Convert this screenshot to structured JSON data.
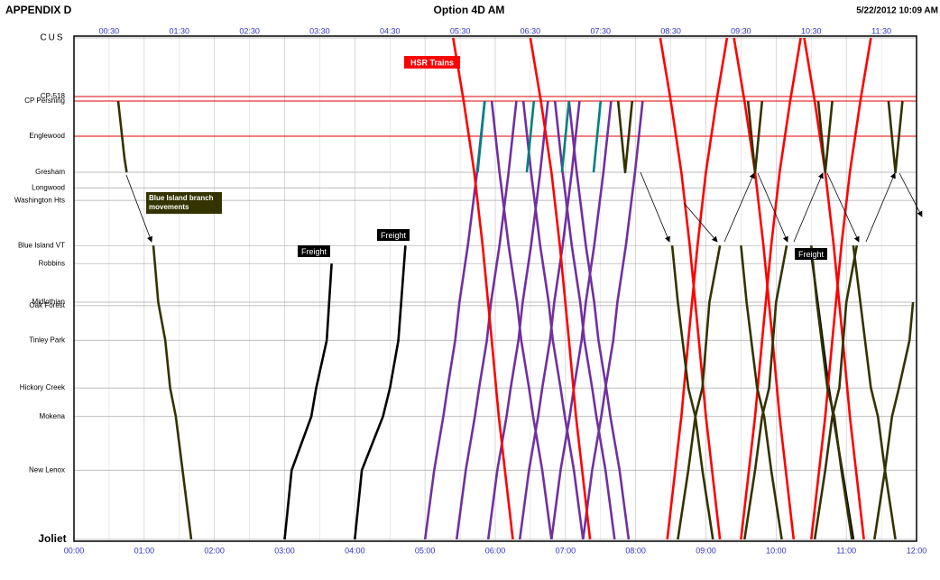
{
  "header": {
    "left": "APPENDIX D",
    "center": "Option 4D AM",
    "right": "5/22/2012 10:09 AM"
  },
  "chart_data": {
    "type": "line",
    "xlim": [
      0,
      12
    ],
    "xticks": [
      {
        "value": 0,
        "label": "00:00"
      },
      {
        "value": 1,
        "label": "01:00"
      },
      {
        "value": 2,
        "label": "02:00"
      },
      {
        "value": 3,
        "label": "03:00"
      },
      {
        "value": 4,
        "label": "04:00"
      },
      {
        "value": 5,
        "label": "05:00"
      },
      {
        "value": 6,
        "label": "06:00"
      },
      {
        "value": 7,
        "label": "07:00"
      },
      {
        "value": 8,
        "label": "08:00"
      },
      {
        "value": 9,
        "label": "09:00"
      },
      {
        "value": 10,
        "label": "10:00"
      },
      {
        "value": 11,
        "label": "11:00"
      },
      {
        "value": 12,
        "label": "12:00"
      }
    ],
    "x2ticks": [
      {
        "value": 0.5,
        "label": "00:30"
      },
      {
        "value": 1.5,
        "label": "01:30"
      },
      {
        "value": 2.5,
        "label": "02:30"
      },
      {
        "value": 3.5,
        "label": "03:30"
      },
      {
        "value": 4.5,
        "label": "04:30"
      },
      {
        "value": 5.5,
        "label": "05:30"
      },
      {
        "value": 6.5,
        "label": "06:30"
      },
      {
        "value": 7.5,
        "label": "07:30"
      },
      {
        "value": 8.5,
        "label": "08:30"
      },
      {
        "value": 9.5,
        "label": "09:30"
      },
      {
        "value": 10.5,
        "label": "10:30"
      },
      {
        "value": 11.5,
        "label": "11:30"
      }
    ],
    "ylim": [
      0,
      100
    ],
    "yticks": [
      {
        "value": 100,
        "label": "CUS"
      },
      {
        "value": 88.3,
        "label": "CP-518"
      },
      {
        "value": 87.4,
        "label": "CP Pershing"
      },
      {
        "value": 80.4,
        "label": "Englewood"
      },
      {
        "value": 73.2,
        "label": "Gresham"
      },
      {
        "value": 70.1,
        "label": "Longwood"
      },
      {
        "value": 67.6,
        "label": "Washington Hts"
      },
      {
        "value": 58.6,
        "label": "Blue Island VT"
      },
      {
        "value": 55,
        "label": "Robbins"
      },
      {
        "value": 47.3,
        "label": "Midlothian"
      },
      {
        "value": 46.6,
        "label": "Oak Forest"
      },
      {
        "value": 39.7,
        "label": "Tinley Park"
      },
      {
        "value": 30.2,
        "label": "Hickory Creek"
      },
      {
        "value": 24.5,
        "label": "Mokena"
      },
      {
        "value": 13.8,
        "label": "New Lenox"
      },
      {
        "value": 0,
        "label": "Joliet"
      }
    ],
    "highlight_color": "#e00000",
    "grid": true,
    "annotations": [
      {
        "text": "HSR Trains",
        "color": "#ff0000"
      },
      {
        "text": "Blue Island branch movements",
        "color": "#333300"
      },
      {
        "text": "Freight",
        "color": "#000000"
      },
      {
        "text": "Freight",
        "color": "#000000"
      },
      {
        "text": "Freight",
        "color": "#000000"
      }
    ],
    "series": [
      {
        "color": "#000000",
        "x": [
          3.0,
          3.1,
          3.38,
          3.45,
          3.6,
          3.67
        ],
        "values": [
          0,
          13.8,
          24.5,
          30.2,
          39.7,
          55
        ]
      },
      {
        "color": "#000000",
        "x": [
          4.0,
          4.1,
          4.4,
          4.5,
          4.62,
          4.72
        ],
        "values": [
          0,
          13.8,
          24.5,
          30.2,
          39.7,
          58.6
        ]
      },
      {
        "color": "#000000",
        "x": [
          10.5,
          10.75,
          11.1
        ],
        "values": [
          57,
          30.2,
          0
        ]
      },
      {
        "color": "#333300",
        "x": [
          0.63,
          0.72,
          0.75
        ],
        "values": [
          87.4,
          76,
          73.2
        ]
      },
      {
        "color": "#333300",
        "x": [
          1.13,
          1.2,
          1.3,
          1.37,
          1.45,
          1.67
        ],
        "values": [
          58.6,
          47.3,
          39.7,
          30.2,
          24.5,
          0
        ]
      },
      {
        "color": "#7030a0",
        "x": [
          5,
          5.13,
          5.26,
          5.32,
          5.43,
          5.49,
          5.61,
          5.74,
          5.85
        ],
        "values": [
          0,
          13.8,
          24.5,
          30.2,
          39.7,
          47.3,
          58.6,
          73.2,
          87.4
        ]
      },
      {
        "color": "#7030a0",
        "x": [
          5.45,
          5.58,
          5.71,
          5.77,
          5.88,
          5.94,
          6.06,
          6.19,
          6.3
        ],
        "values": [
          0,
          13.8,
          24.5,
          30.2,
          39.7,
          47.3,
          58.6,
          73.2,
          87.4
        ]
      },
      {
        "color": "#7030a0",
        "x": [
          5.9,
          6.03,
          6.16,
          6.22,
          6.33,
          6.39,
          6.51,
          6.64,
          6.75
        ],
        "values": [
          0,
          13.8,
          24.5,
          30.2,
          39.7,
          47.3,
          58.6,
          73.2,
          87.4
        ]
      },
      {
        "color": "#7030a0",
        "x": [
          6.35,
          6.48,
          6.61,
          6.67,
          6.78,
          6.84,
          6.96,
          7.09,
          7.2
        ],
        "values": [
          0,
          13.8,
          24.5,
          30.2,
          39.7,
          47.3,
          58.6,
          73.2,
          87.4
        ]
      },
      {
        "color": "#7030a0",
        "x": [
          6.8,
          6.93,
          7.06,
          7.12,
          7.23,
          7.29,
          7.41,
          7.54,
          7.65
        ],
        "values": [
          0,
          13.8,
          24.5,
          30.2,
          39.7,
          47.3,
          58.6,
          73.2,
          87.4
        ]
      },
      {
        "color": "#7030a0",
        "x": [
          7.25,
          7.38,
          7.51,
          7.57,
          7.68,
          7.74,
          7.86,
          7.99,
          8.1
        ],
        "values": [
          0,
          13.8,
          24.5,
          30.2,
          39.7,
          47.3,
          58.6,
          73.2,
          87.4
        ]
      },
      {
        "color": "#7030a0",
        "x": [
          5.95,
          6.06,
          6.19,
          6.31,
          6.37,
          6.48,
          6.54,
          6.67,
          6.8
        ],
        "values": [
          87.4,
          73.2,
          58.6,
          47.3,
          39.7,
          30.2,
          24.5,
          13.8,
          0
        ]
      },
      {
        "color": "#7030a0",
        "x": [
          6.4,
          6.51,
          6.64,
          6.76,
          6.82,
          6.93,
          6.99,
          7.12,
          7.25
        ],
        "values": [
          87.4,
          73.2,
          58.6,
          47.3,
          39.7,
          30.2,
          24.5,
          13.8,
          0
        ]
      },
      {
        "color": "#7030a0",
        "x": [
          6.85,
          6.96,
          7.09,
          7.21,
          7.27,
          7.38,
          7.44,
          7.57,
          7.7
        ],
        "values": [
          87.4,
          73.2,
          58.6,
          47.3,
          39.7,
          30.2,
          24.5,
          13.8,
          0
        ]
      },
      {
        "color": "#7030a0",
        "x": [
          7.05,
          7.16,
          7.29,
          7.41,
          7.47,
          7.58,
          7.64,
          7.77,
          7.9
        ],
        "values": [
          87.4,
          73.2,
          58.6,
          47.3,
          39.7,
          30.2,
          24.5,
          13.8,
          0
        ]
      },
      {
        "color": "#008080",
        "x": [
          5.75,
          5.85
        ],
        "values": [
          73.2,
          87.4
        ]
      },
      {
        "color": "#008080",
        "x": [
          6.45,
          6.55
        ],
        "values": [
          73.2,
          87.4
        ]
      },
      {
        "color": "#008080",
        "x": [
          6.95,
          7.05
        ],
        "values": [
          73.2,
          87.4
        ]
      },
      {
        "color": "#008080",
        "x": [
          7.4,
          7.5
        ],
        "values": [
          73.2,
          87.4
        ]
      },
      {
        "color": "#ff0000",
        "x": [
          5.4,
          5.55,
          5.7,
          5.82,
          5.95,
          6.05,
          6.25
        ],
        "values": [
          100,
          87.4,
          73.2,
          58.6,
          39.7,
          24.5,
          0
        ]
      },
      {
        "color": "#ff0000",
        "x": [
          6.5,
          6.65,
          6.8,
          6.92,
          7.05,
          7.15,
          7.35
        ],
        "values": [
          100,
          87.4,
          73.2,
          58.6,
          39.7,
          24.5,
          0
        ]
      },
      {
        "color": "#ff0000",
        "x": [
          8.35,
          8.5,
          8.65,
          8.77,
          8.9,
          9.0,
          9.2
        ],
        "values": [
          100,
          87.4,
          73.2,
          58.6,
          39.7,
          24.5,
          0
        ]
      },
      {
        "color": "#ff0000",
        "x": [
          9.4,
          9.55,
          9.7,
          9.82,
          9.95,
          10.05,
          10.25
        ],
        "values": [
          100,
          87.4,
          73.2,
          58.6,
          39.7,
          24.5,
          0
        ]
      },
      {
        "color": "#ff0000",
        "x": [
          10.4,
          10.55,
          10.7,
          10.82,
          10.95,
          11.05,
          11.25
        ],
        "values": [
          100,
          87.4,
          73.2,
          58.6,
          39.7,
          24.5,
          0
        ]
      },
      {
        "color": "#ff0000",
        "x": [
          8.45,
          8.65,
          8.75,
          8.88,
          9.0,
          9.15,
          9.3
        ],
        "values": [
          0,
          24.5,
          39.7,
          58.6,
          73.2,
          87.4,
          100
        ]
      },
      {
        "color": "#ff0000",
        "x": [
          9.5,
          9.7,
          9.8,
          9.93,
          10.05,
          10.2,
          10.35
        ],
        "values": [
          0,
          24.5,
          39.7,
          58.6,
          73.2,
          87.4,
          100
        ]
      },
      {
        "color": "#ff0000",
        "x": [
          10.5,
          10.7,
          10.8,
          10.93,
          11.05,
          11.2,
          11.35
        ],
        "values": [
          0,
          24.5,
          39.7,
          58.6,
          73.2,
          87.4,
          100
        ]
      },
      {
        "color": "#333300",
        "x": [
          8.52,
          8.6,
          8.75,
          8.85,
          8.95,
          9.1
        ],
        "values": [
          58.6,
          47.3,
          30.2,
          24.5,
          13.8,
          0
        ]
      },
      {
        "color": "#333300",
        "x": [
          8.6,
          8.75,
          8.85,
          8.95,
          9.05,
          9.2
        ],
        "values": [
          0,
          13.8,
          24.5,
          30.2,
          47.3,
          58.6
        ]
      },
      {
        "color": "#333300",
        "x": [
          9.5,
          9.58,
          9.73,
          9.83,
          9.93,
          10.08
        ],
        "values": [
          58.6,
          47.3,
          30.2,
          24.5,
          13.8,
          0
        ]
      },
      {
        "color": "#333300",
        "x": [
          9.55,
          9.7,
          9.8,
          9.9,
          10.0,
          10.15
        ],
        "values": [
          0,
          13.8,
          24.5,
          30.2,
          47.3,
          58.6
        ]
      },
      {
        "color": "#333300",
        "x": [
          10.5,
          10.58,
          10.73,
          10.83,
          10.93,
          11.08
        ],
        "values": [
          58.6,
          47.3,
          30.2,
          24.5,
          13.8,
          0
        ]
      },
      {
        "color": "#333300",
        "x": [
          10.55,
          10.7,
          10.8,
          10.9,
          11.0,
          11.15
        ],
        "values": [
          0,
          13.8,
          24.5,
          30.2,
          47.3,
          58.6
        ]
      },
      {
        "color": "#333300",
        "x": [
          11.1,
          11.2,
          11.35,
          11.45,
          11.55,
          11.7
        ],
        "values": [
          58.6,
          47.3,
          30.2,
          24.5,
          13.8,
          0
        ]
      },
      {
        "color": "#333300",
        "x": [
          11.4,
          11.55,
          11.65,
          11.75,
          11.9,
          11.95
        ],
        "values": [
          0,
          13.8,
          24.5,
          30.2,
          39.7,
          47.3
        ]
      },
      {
        "color": "#333300",
        "x": [
          7.75,
          7.85,
          7.95
        ],
        "values": [
          87.4,
          73.2,
          87.4
        ]
      },
      {
        "color": "#333300",
        "x": [
          9.6,
          9.7,
          9.8
        ],
        "values": [
          87.4,
          73.2,
          87.4
        ]
      },
      {
        "color": "#333300",
        "x": [
          10.6,
          10.7,
          10.8
        ],
        "values": [
          87.4,
          73.2,
          87.4
        ]
      },
      {
        "color": "#333300",
        "x": [
          11.6,
          11.7,
          11.8
        ],
        "values": [
          87.4,
          73.2,
          87.4
        ]
      }
    ]
  }
}
